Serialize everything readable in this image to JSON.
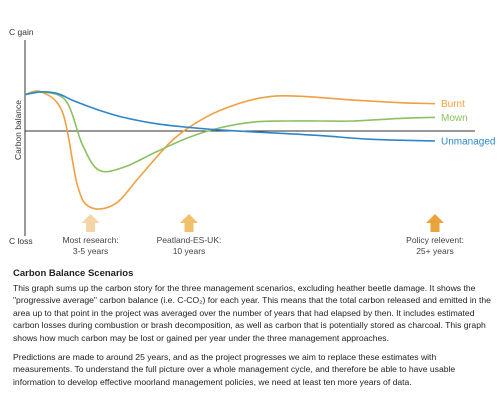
{
  "chart_data": {
    "type": "line",
    "title": "",
    "ylabel": "Carbon balance",
    "y_top_label": "C gain",
    "y_bottom_label": "C loss",
    "xlim": [
      0,
      25
    ],
    "ylim": [
      -10,
      10
    ],
    "grid": false,
    "colors": {
      "Burnt": "#f0a040",
      "Mown": "#8cc060",
      "Unmanaged": "#2e86c8"
    },
    "series": [
      {
        "name": "Burnt",
        "color": "#f0a040",
        "points": [
          [
            0,
            4
          ],
          [
            1,
            4.3
          ],
          [
            2.3,
            2
          ],
          [
            3.2,
            -6
          ],
          [
            4,
            -8.4
          ],
          [
            5.5,
            -8
          ],
          [
            7,
            -5
          ],
          [
            9,
            -1
          ],
          [
            11,
            1.5
          ],
          [
            13,
            3
          ],
          [
            15,
            3.8
          ],
          [
            17,
            3.8
          ],
          [
            20,
            3.4
          ],
          [
            23,
            3.1
          ],
          [
            25,
            3.0
          ]
        ]
      },
      {
        "name": "Mown",
        "color": "#8cc060",
        "points": [
          [
            0,
            4
          ],
          [
            1,
            4.3
          ],
          [
            2.5,
            3.3
          ],
          [
            3.5,
            -1.5
          ],
          [
            4.5,
            -4.3
          ],
          [
            6,
            -4
          ],
          [
            8,
            -2.3
          ],
          [
            10,
            -0.7
          ],
          [
            12,
            0.4
          ],
          [
            14,
            1
          ],
          [
            16,
            1.1
          ],
          [
            18,
            1.1
          ],
          [
            20,
            1.1
          ],
          [
            23,
            1.4
          ],
          [
            25,
            1.5
          ]
        ]
      },
      {
        "name": "Unmanaged",
        "color": "#2e86c8",
        "points": [
          [
            0,
            4
          ],
          [
            1,
            4.3
          ],
          [
            2,
            4.1
          ],
          [
            3,
            3.3
          ],
          [
            4.5,
            2.3
          ],
          [
            6,
            1.5
          ],
          [
            8,
            0.8
          ],
          [
            10,
            0.4
          ],
          [
            12,
            0.1
          ],
          [
            15,
            -0.2
          ],
          [
            18,
            -0.5
          ],
          [
            21,
            -0.9
          ],
          [
            25,
            -1.1
          ]
        ]
      }
    ],
    "markers": [
      {
        "x": 4,
        "label_lines": [
          "Most research:",
          "3-5 years"
        ],
        "color": "#f5d5a5"
      },
      {
        "x": 10,
        "label_lines": [
          "Peatland-ES-UK:",
          "10 years"
        ],
        "color": "#f2c068"
      },
      {
        "x": 25,
        "label_lines": [
          "Policy relevent:",
          "25+ years"
        ],
        "color": "#e8a33a"
      }
    ]
  },
  "description": {
    "heading": "Carbon Balance Scenarios",
    "paragraph1": "This graph sums up the carbon story for the three management scenarios, excluding heather beetle damage. It shows the \"progressive average\" carbon balance (i.e. C-CO₂) for each year. This means that the total carbon released and emitted in the area up to that point in the project was averaged over the number of years that had elapsed by then. It includes estimated carbon losses during combustion or brash decomposition, as well as carbon that is potentially stored as charcoal. This graph shows how much carbon may be lost or gained per year under the three management approaches.",
    "paragraph2": "Predictions are made to around 25 years, and as the project progresses we aim to replace these estimates with measurements. To understand the full picture over a whole management cycle, and therefore be able to have usable information to develop effective moorland management policies, we need at least ten more years of data."
  }
}
